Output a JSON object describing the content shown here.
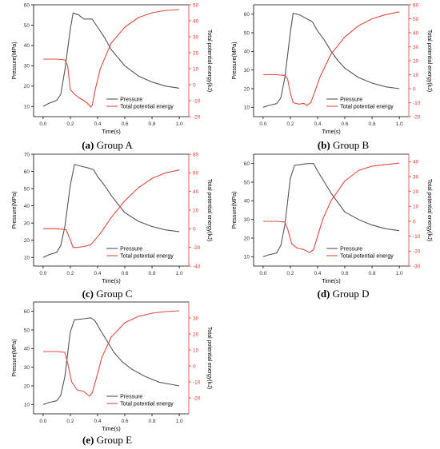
{
  "colors": {
    "pressure": "#555555",
    "energy": "#e8483c",
    "axis_right": "#e0392e"
  },
  "chart_data": [
    {
      "type": "line",
      "caption_letter": "(a)",
      "caption_text": " Group A",
      "xlabel": "Time(s)",
      "ylabel": "Pressure(MPa)",
      "y2label": "Total potential energy(kJ)",
      "xlim": [
        -0.07,
        1.07
      ],
      "ylim": [
        5,
        60
      ],
      "y2lim": [
        -20,
        50
      ],
      "xticks": [
        "0.0",
        "0.2",
        "0.4",
        "0.6",
        "0.8",
        "1.0"
      ],
      "yticks": [
        10,
        20,
        30,
        40,
        50,
        60
      ],
      "y2ticks": [
        -20,
        -10,
        0,
        10,
        20,
        30,
        40,
        50
      ],
      "series": [
        {
          "name": "Pressure",
          "axis": "left",
          "x": [
            0.0,
            0.04,
            0.1,
            0.13,
            0.16,
            0.2,
            0.22,
            0.26,
            0.3,
            0.33,
            0.36,
            0.4,
            0.45,
            0.5,
            0.55,
            0.6,
            0.7,
            0.8,
            0.9,
            1.0
          ],
          "y": [
            10,
            11.5,
            13,
            16,
            28,
            48,
            56,
            55,
            53,
            53,
            53,
            49,
            44,
            38,
            34,
            30,
            25,
            22,
            20,
            19
          ]
        },
        {
          "name": "Total potential energy",
          "axis": "right",
          "x": [
            0.0,
            0.1,
            0.16,
            0.18,
            0.2,
            0.23,
            0.26,
            0.3,
            0.33,
            0.35,
            0.36,
            0.38,
            0.42,
            0.5,
            0.6,
            0.7,
            0.8,
            0.9,
            1.0
          ],
          "y": [
            16,
            16,
            15.5,
            12,
            -3,
            -6,
            -8,
            -10,
            -12,
            -14,
            -13,
            -4,
            10,
            26,
            36,
            42,
            45,
            46.5,
            47
          ]
        }
      ]
    },
    {
      "type": "line",
      "caption_letter": "(b)",
      "caption_text": " Group B",
      "xlabel": "Time(s)",
      "ylabel": "Pressure(MPa)",
      "y2label": "Total potential energy(kJ)",
      "xlim": [
        -0.07,
        1.07
      ],
      "ylim": [
        5,
        65
      ],
      "y2lim": [
        -20,
        60
      ],
      "xticks": [
        "0.0",
        "0.2",
        "0.4",
        "0.6",
        "0.8",
        "1.0"
      ],
      "yticks": [
        10,
        20,
        30,
        40,
        50,
        60
      ],
      "y2ticks": [
        -20,
        -10,
        0,
        10,
        20,
        30,
        40,
        50,
        60
      ],
      "series": [
        {
          "name": "Pressure",
          "axis": "left",
          "x": [
            0.0,
            0.04,
            0.1,
            0.13,
            0.16,
            0.2,
            0.22,
            0.27,
            0.32,
            0.36,
            0.4,
            0.45,
            0.5,
            0.55,
            0.6,
            0.7,
            0.8,
            0.9,
            1.0
          ],
          "y": [
            10,
            11,
            12,
            15,
            26,
            50,
            60.5,
            59.5,
            57.5,
            56,
            51,
            46,
            40,
            35,
            31,
            26,
            23,
            21,
            20
          ]
        },
        {
          "name": "Total potential energy",
          "axis": "right",
          "x": [
            0.0,
            0.1,
            0.16,
            0.18,
            0.2,
            0.22,
            0.26,
            0.3,
            0.32,
            0.35,
            0.38,
            0.42,
            0.5,
            0.6,
            0.7,
            0.8,
            0.9,
            1.0
          ],
          "y": [
            10,
            10,
            9.5,
            7,
            -3,
            -10,
            -11,
            -10.5,
            -12,
            -10,
            -2,
            9,
            25,
            37,
            45,
            50,
            53,
            55
          ]
        }
      ]
    },
    {
      "type": "line",
      "caption_letter": "(c)",
      "caption_text": " Group C",
      "xlabel": "Time(s)",
      "ylabel": "Pressure(MPa)",
      "y2label": "Total potential energy(kJ)",
      "xlim": [
        -0.07,
        1.07
      ],
      "ylim": [
        5,
        70
      ],
      "y2lim": [
        -40,
        80
      ],
      "xticks": [
        "0.0",
        "0.2",
        "0.4",
        "0.6",
        "0.8",
        "1.0"
      ],
      "yticks": [
        10,
        20,
        30,
        40,
        50,
        60,
        70
      ],
      "y2ticks": [
        -40,
        -20,
        0,
        20,
        40,
        60,
        80
      ],
      "series": [
        {
          "name": "Pressure",
          "axis": "left",
          "x": [
            0.0,
            0.04,
            0.1,
            0.13,
            0.16,
            0.2,
            0.23,
            0.28,
            0.33,
            0.37,
            0.4,
            0.45,
            0.5,
            0.55,
            0.6,
            0.7,
            0.8,
            0.9,
            1.0
          ],
          "y": [
            10,
            11.5,
            13,
            17,
            28,
            52,
            64,
            63,
            62,
            61,
            57,
            52,
            46,
            41,
            36,
            31,
            28,
            26,
            25
          ]
        },
        {
          "name": "Total potential energy",
          "axis": "right",
          "x": [
            0.0,
            0.1,
            0.17,
            0.2,
            0.22,
            0.25,
            0.3,
            0.35,
            0.38,
            0.42,
            0.5,
            0.6,
            0.7,
            0.8,
            0.9,
            1.0
          ],
          "y": [
            0,
            0,
            -1,
            -12,
            -20,
            -20,
            -19,
            -17,
            -12,
            -5,
            12,
            30,
            44,
            54,
            60,
            63
          ]
        }
      ]
    },
    {
      "type": "line",
      "caption_letter": "(d)",
      "caption_text": " Group D",
      "xlabel": "Time(s)",
      "ylabel": "Pressure(MPa)",
      "y2label": "Total potential energy(kJ)",
      "xlim": [
        -0.07,
        1.07
      ],
      "ylim": [
        5,
        65
      ],
      "y2lim": [
        -30,
        45
      ],
      "xticks": [
        "0.0",
        "0.2",
        "0.4",
        "0.6",
        "0.8",
        "1.0"
      ],
      "yticks": [
        10,
        20,
        30,
        40,
        50,
        60
      ],
      "y2ticks": [
        -30,
        -20,
        -10,
        0,
        10,
        20,
        30,
        40
      ],
      "series": [
        {
          "name": "Pressure",
          "axis": "left",
          "x": [
            0.0,
            0.04,
            0.1,
            0.13,
            0.16,
            0.2,
            0.23,
            0.28,
            0.33,
            0.37,
            0.4,
            0.45,
            0.5,
            0.55,
            0.6,
            0.7,
            0.8,
            0.9,
            1.0
          ],
          "y": [
            10,
            11,
            12,
            16,
            27,
            52,
            59,
            59.5,
            60,
            60,
            56,
            50,
            44,
            39,
            34,
            30,
            27,
            25,
            24
          ]
        },
        {
          "name": "Total potential energy",
          "axis": "right",
          "x": [
            0.0,
            0.1,
            0.16,
            0.18,
            0.21,
            0.25,
            0.3,
            0.34,
            0.37,
            0.4,
            0.44,
            0.5,
            0.6,
            0.7,
            0.8,
            0.9,
            1.0
          ],
          "y": [
            0,
            0,
            -0.5,
            -5,
            -15,
            -18,
            -19,
            -21,
            -19,
            -10,
            2,
            14,
            27,
            34,
            37,
            38,
            39
          ]
        }
      ]
    },
    {
      "type": "line",
      "caption_letter": "(e)",
      "caption_text": " Group E",
      "xlabel": "Time(s)",
      "ylabel": "Pressure(MPa)",
      "y2label": "Total potential energy(kJ)",
      "xlim": [
        -0.07,
        1.07
      ],
      "ylim": [
        5,
        65
      ],
      "y2lim": [
        -30,
        40
      ],
      "xticks": [
        "0.0",
        "0.2",
        "0.4",
        "0.6",
        "0.8",
        "1.0"
      ],
      "yticks": [
        10,
        20,
        30,
        40,
        50,
        60
      ],
      "y2ticks": [
        -20,
        -10,
        0,
        10,
        20,
        30
      ],
      "series": [
        {
          "name": "Pressure",
          "axis": "left",
          "x": [
            0.0,
            0.04,
            0.1,
            0.13,
            0.16,
            0.2,
            0.23,
            0.3,
            0.35,
            0.38,
            0.42,
            0.47,
            0.52,
            0.58,
            0.65,
            0.75,
            0.85,
            1.0
          ],
          "y": [
            10,
            11,
            12,
            15,
            25,
            49,
            55.5,
            56,
            56.5,
            55,
            50,
            44,
            38,
            33,
            29,
            25,
            22,
            20
          ]
        },
        {
          "name": "Total potential energy",
          "axis": "right",
          "x": [
            0.0,
            0.1,
            0.16,
            0.18,
            0.21,
            0.25,
            0.3,
            0.34,
            0.36,
            0.39,
            0.43,
            0.5,
            0.6,
            0.7,
            0.8,
            0.9,
            1.0
          ],
          "y": [
            9,
            9,
            8.5,
            2,
            -10,
            -15,
            -16,
            -19,
            -17,
            -8,
            5,
            18,
            27,
            31,
            33,
            34,
            34.5
          ]
        }
      ]
    }
  ]
}
